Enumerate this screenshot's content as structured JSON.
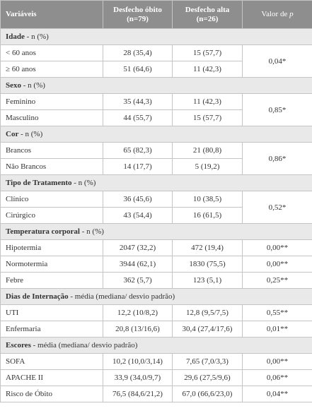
{
  "header": {
    "variable": "Variáveis",
    "death": [
      "Desfecho óbito",
      "(n=79)"
    ],
    "discharge": [
      "Desfecho alta",
      "(n=26)"
    ],
    "p_value": [
      "Valor de",
      "p"
    ]
  },
  "sections": [
    {
      "title": "Idade",
      "unit": "- n (%)",
      "p": "0,04*",
      "rows": [
        [
          "< 60 anos",
          "28 (35,4)",
          "15 (57,7)"
        ],
        [
          "≥ 60 anos",
          "51 (64,6)",
          "11 (42,3)"
        ]
      ]
    },
    {
      "title": "Sexo",
      "unit": "- n (%)",
      "p": "0,85*",
      "rows": [
        [
          "Feminino",
          "35 (44,3)",
          "11 (42,3)"
        ],
        [
          "Masculino",
          "44 (55,7)",
          "15 (57,7)"
        ]
      ]
    },
    {
      "title": "Cor",
      "unit": "- n (%)",
      "p": "0,86*",
      "rows": [
        [
          "Brancos",
          "65 (82,3)",
          "21 (80,8)"
        ],
        [
          "Não Brancos",
          "14 (17,7)",
          "5 (19,2)"
        ]
      ]
    },
    {
      "title": "Tipo de Tratamento",
      "unit": "- n (%)",
      "p": "0,52*",
      "rows": [
        [
          "Clínico",
          "36 (45,6)",
          "10 (38,5)"
        ],
        [
          "Cirúrgico",
          "43 (54,4)",
          "16 (61,5)"
        ]
      ]
    },
    {
      "title": "Temperatura corporal",
      "unit": "- n (%)",
      "rows": [
        [
          "Hipotermia",
          "2047 (32,2)",
          "472 (19,4)",
          "0,00**"
        ],
        [
          "Normotermia",
          "3944 (62,1)",
          "1830 (75,5)",
          "0,00**"
        ],
        [
          "Febre",
          "362 (5,7)",
          "123 (5,1)",
          "0,25**"
        ]
      ]
    },
    {
      "title": "Dias de Internação",
      "unit": "- média (mediana/ desvio padrão)",
      "rows": [
        [
          "UTI",
          "12,2 (10/8,2)",
          "12,8 (9,5/7,5)",
          "0,55**"
        ],
        [
          "Enfermaria",
          "20,8 (13/16,6)",
          "30,4 (27,4/17,6)",
          "0,01**"
        ]
      ]
    },
    {
      "title": "Escores",
      "unit": "- média (mediana/ desvio padrão)",
      "rows": [
        [
          "SOFA",
          "10,2 (10,0/3,14)",
          "7,65 (7,0/3,3)",
          "0,00**"
        ],
        [
          "APACHE II",
          "33,9 (34,0/9,7)",
          "29,6 (27,5/9,6)",
          "0,06**"
        ],
        [
          "Risco de Óbito",
          "76,5 (84,6/21,2)",
          "67,0 (66,6/23,0)",
          "0,04**"
        ]
      ]
    }
  ]
}
